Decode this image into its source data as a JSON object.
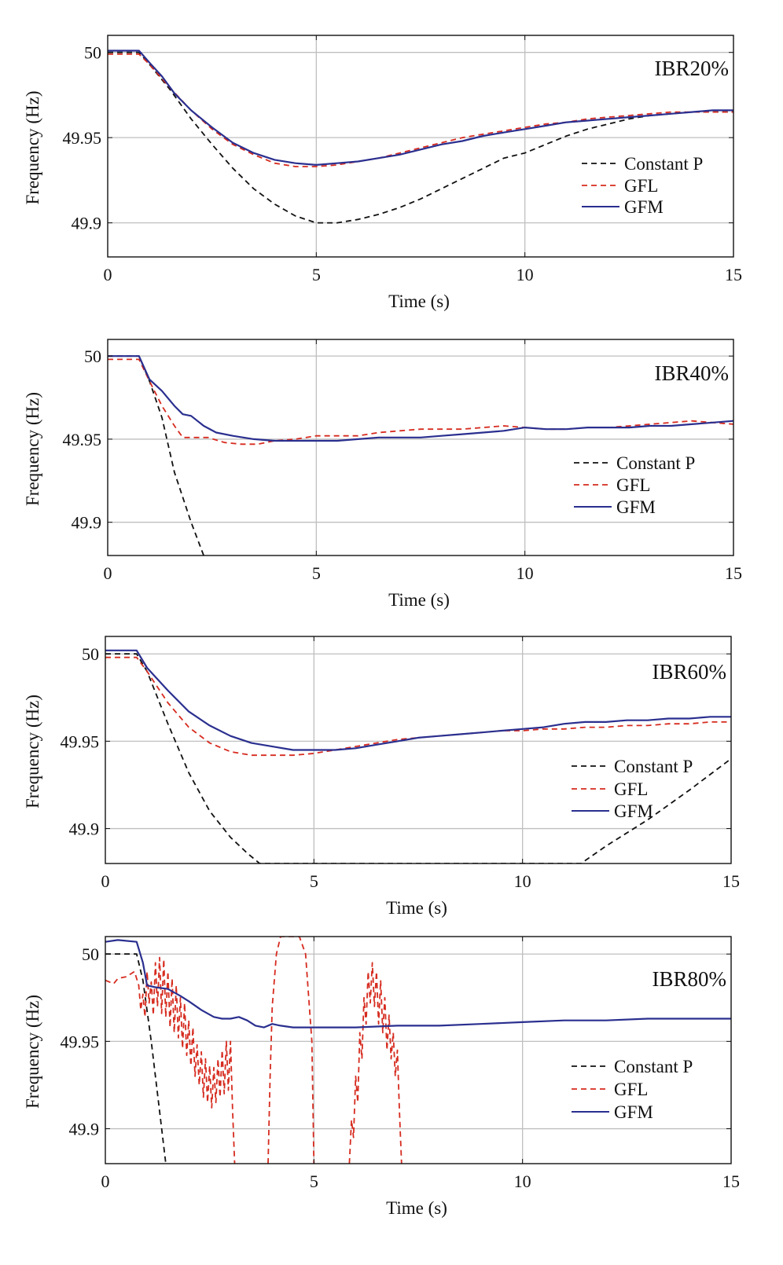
{
  "figure": {
    "xlabel": "Time (s)",
    "ylabel": "Frequency (Hz)",
    "legend": [
      {
        "name": "Constant P",
        "color": "#111111",
        "dash": "dashed"
      },
      {
        "name": "GFL",
        "color": "#d62b1f",
        "dash": "dashed"
      },
      {
        "name": "GFM",
        "color": "#2a2f8f",
        "dash": "solid"
      }
    ]
  },
  "chart_data": [
    {
      "type": "line",
      "title": "IBR20%",
      "xlabel": "Time (s)",
      "ylabel": "Frequency (Hz)",
      "xlim": [
        0,
        15
      ],
      "ylim": [
        49.88,
        50.01
      ],
      "xticks": [
        0,
        5,
        10,
        15
      ],
      "yticks": [
        49.9,
        49.95,
        50
      ],
      "ytick_labels": [
        "49.9",
        "49.95",
        "50"
      ],
      "grid": true,
      "legend_position": "right",
      "series": [
        {
          "name": "Constant P",
          "color": "#111111",
          "dash": "dashed",
          "x": [
            0,
            0.75,
            1.0,
            1.5,
            2.0,
            2.5,
            3.0,
            3.5,
            4.0,
            4.5,
            5.0,
            5.5,
            6.0,
            6.5,
            7.0,
            7.5,
            8.0,
            8.5,
            9.0,
            9.5,
            10.0,
            10.5,
            11.0,
            11.5,
            12.0,
            12.5,
            13.0,
            13.5,
            14.0,
            14.5,
            15.0
          ],
          "y": [
            50.0,
            50.0,
            49.993,
            49.978,
            49.961,
            49.946,
            49.932,
            49.92,
            49.911,
            49.904,
            49.9,
            49.9,
            49.902,
            49.905,
            49.909,
            49.914,
            49.92,
            49.926,
            49.932,
            49.938,
            49.941,
            49.946,
            49.951,
            49.955,
            49.958,
            49.961,
            49.963,
            49.964,
            49.965,
            49.965,
            49.965
          ]
        },
        {
          "name": "GFL",
          "color": "#d62b1f",
          "dash": "dashed",
          "x": [
            0,
            0.75,
            1.0,
            1.5,
            2.0,
            2.5,
            3.0,
            3.5,
            4.0,
            4.5,
            5.0,
            5.5,
            6.0,
            6.5,
            7.0,
            7.5,
            8.0,
            8.5,
            9.0,
            9.5,
            10.0,
            10.5,
            11.0,
            11.5,
            12.0,
            12.5,
            13.0,
            13.5,
            14.0,
            14.5,
            15.0
          ],
          "y": [
            49.999,
            49.999,
            49.993,
            49.979,
            49.966,
            49.955,
            49.946,
            49.94,
            49.935,
            49.933,
            49.933,
            49.934,
            49.936,
            49.938,
            49.941,
            49.944,
            49.947,
            49.95,
            49.952,
            49.954,
            49.956,
            49.958,
            49.959,
            49.961,
            49.962,
            49.963,
            49.964,
            49.965,
            49.965,
            49.965,
            49.965
          ]
        },
        {
          "name": "GFM",
          "color": "#2a2f8f",
          "dash": "solid",
          "x": [
            0,
            0.75,
            1.0,
            1.3,
            1.6,
            2.0,
            2.5,
            3.0,
            3.5,
            4.0,
            4.5,
            5.0,
            5.5,
            6.0,
            6.5,
            7.0,
            7.5,
            8.0,
            8.5,
            9.0,
            9.5,
            10.0,
            10.5,
            11.0,
            11.5,
            12.0,
            12.5,
            13.0,
            13.5,
            14.0,
            14.5,
            15.0
          ],
          "y": [
            50.001,
            50.001,
            49.994,
            49.986,
            49.976,
            49.966,
            49.956,
            49.947,
            49.941,
            49.937,
            49.935,
            49.934,
            49.935,
            49.936,
            49.938,
            49.94,
            49.943,
            49.946,
            49.948,
            49.951,
            49.953,
            49.955,
            49.957,
            49.959,
            49.96,
            49.961,
            49.962,
            49.963,
            49.964,
            49.965,
            49.966,
            49.966
          ]
        }
      ]
    },
    {
      "type": "line",
      "title": "IBR40%",
      "xlabel": "Time (s)",
      "ylabel": "Frequency (Hz)",
      "xlim": [
        0,
        15
      ],
      "ylim": [
        49.88,
        50.01
      ],
      "xticks": [
        0,
        5,
        10,
        15
      ],
      "yticks": [
        49.9,
        49.95,
        50
      ],
      "ytick_labels": [
        "49.9",
        "49.95",
        "50"
      ],
      "grid": true,
      "legend_position": "right",
      "series": [
        {
          "name": "Constant P",
          "color": "#111111",
          "dash": "dashed",
          "x": [
            0,
            0.75,
            1.0,
            1.3,
            1.6,
            2.0,
            2.3
          ],
          "y": [
            50.0,
            50.0,
            49.985,
            49.963,
            49.93,
            49.9,
            49.88
          ]
        },
        {
          "name": "GFL",
          "color": "#d62b1f",
          "dash": "dashed",
          "x": [
            0,
            0.75,
            1.0,
            1.3,
            1.6,
            1.8,
            2.0,
            2.4,
            2.8,
            3.2,
            3.6,
            4.0,
            4.5,
            5.0,
            5.5,
            6.0,
            6.5,
            7.0,
            7.5,
            8.0,
            8.5,
            9.0,
            9.5,
            10.0,
            10.5,
            11.0,
            11.5,
            12.0,
            12.5,
            13.0,
            13.5,
            14.0,
            14.5,
            15.0
          ],
          "y": [
            49.998,
            49.998,
            49.985,
            49.97,
            49.958,
            49.951,
            49.951,
            49.951,
            49.948,
            49.947,
            49.947,
            49.949,
            49.95,
            49.952,
            49.952,
            49.952,
            49.954,
            49.955,
            49.956,
            49.956,
            49.956,
            49.957,
            49.958,
            49.957,
            49.956,
            49.956,
            49.957,
            49.957,
            49.958,
            49.959,
            49.96,
            49.961,
            49.96,
            49.959
          ]
        },
        {
          "name": "GFM",
          "color": "#2a2f8f",
          "dash": "solid",
          "x": [
            0,
            0.75,
            1.0,
            1.3,
            1.6,
            1.8,
            2.0,
            2.3,
            2.6,
            3.0,
            3.5,
            4.0,
            4.5,
            5.0,
            5.5,
            6.0,
            6.5,
            7.0,
            7.5,
            8.0,
            8.5,
            9.0,
            9.5,
            10.0,
            10.5,
            11.0,
            11.5,
            12.0,
            12.5,
            13.0,
            13.5,
            14.0,
            14.5,
            15.0
          ],
          "y": [
            50.0,
            50.0,
            49.986,
            49.979,
            49.97,
            49.965,
            49.964,
            49.958,
            49.954,
            49.952,
            49.95,
            49.949,
            49.949,
            49.949,
            49.949,
            49.95,
            49.951,
            49.951,
            49.951,
            49.952,
            49.953,
            49.954,
            49.955,
            49.957,
            49.956,
            49.956,
            49.957,
            49.957,
            49.957,
            49.958,
            49.958,
            49.959,
            49.96,
            49.961
          ]
        }
      ]
    },
    {
      "type": "line",
      "title": "IBR60%",
      "xlabel": "Time (s)",
      "ylabel": "Frequency (Hz)",
      "xlim": [
        0,
        15
      ],
      "ylim": [
        49.88,
        50.01
      ],
      "xticks": [
        0,
        5,
        10,
        15
      ],
      "yticks": [
        49.9,
        49.95,
        50
      ],
      "ytick_labels": [
        "49.9",
        "49.95",
        "50"
      ],
      "grid": true,
      "legend_position": "right",
      "series": [
        {
          "name": "Constant P",
          "color": "#111111",
          "dash": "dashed",
          "x": [
            0,
            0.75,
            1.0,
            1.5,
            2.0,
            2.5,
            3.0,
            3.4,
            3.7,
            11.4,
            12.0,
            13.0,
            14.0,
            15.0
          ],
          "y": [
            50.0,
            50.0,
            49.99,
            49.96,
            49.932,
            49.91,
            49.895,
            49.886,
            49.88,
            49.88,
            49.89,
            49.905,
            49.922,
            49.94
          ]
        },
        {
          "name": "GFL",
          "color": "#d62b1f",
          "dash": "dashed",
          "x": [
            0,
            0.75,
            1.0,
            1.5,
            2.0,
            2.5,
            3.0,
            3.5,
            4.0,
            4.5,
            5.0,
            5.5,
            6.0,
            6.5,
            7.0,
            7.5,
            8.0,
            8.5,
            9.0,
            9.5,
            10.0,
            10.5,
            11.0,
            11.5,
            12.0,
            12.5,
            13.0,
            13.5,
            14.0,
            14.5,
            15.0
          ],
          "y": [
            49.998,
            49.998,
            49.99,
            49.972,
            49.958,
            49.949,
            49.944,
            49.942,
            49.942,
            49.942,
            49.943,
            49.945,
            49.947,
            49.949,
            49.951,
            49.952,
            49.953,
            49.954,
            49.955,
            49.956,
            49.956,
            49.957,
            49.957,
            49.958,
            49.958,
            49.959,
            49.959,
            49.96,
            49.96,
            49.961,
            49.961
          ]
        },
        {
          "name": "GFM",
          "color": "#2a2f8f",
          "dash": "solid",
          "x": [
            0,
            0.75,
            1.0,
            1.5,
            2.0,
            2.5,
            3.0,
            3.5,
            4.0,
            4.5,
            5.0,
            5.5,
            6.0,
            6.5,
            7.0,
            7.5,
            8.0,
            8.5,
            9.0,
            9.5,
            10.0,
            10.5,
            11.0,
            11.5,
            12.0,
            12.5,
            13.0,
            13.5,
            14.0,
            14.5,
            15.0
          ],
          "y": [
            50.002,
            50.002,
            49.992,
            49.979,
            49.967,
            49.959,
            49.953,
            49.949,
            49.947,
            49.945,
            49.945,
            49.945,
            49.946,
            49.948,
            49.95,
            49.952,
            49.953,
            49.954,
            49.955,
            49.956,
            49.957,
            49.958,
            49.96,
            49.961,
            49.961,
            49.962,
            49.962,
            49.963,
            49.963,
            49.964,
            49.964
          ]
        }
      ]
    },
    {
      "type": "line",
      "title": "IBR80%",
      "xlabel": "Time (s)",
      "ylabel": "Frequency (Hz)",
      "xlim": [
        0,
        15
      ],
      "ylim": [
        49.88,
        50.01
      ],
      "xticks": [
        0,
        5,
        10,
        15
      ],
      "yticks": [
        49.9,
        49.95,
        50
      ],
      "ytick_labels": [
        "49.9",
        "49.95",
        "50"
      ],
      "grid": true,
      "legend_position": "right",
      "series": [
        {
          "name": "Constant P",
          "color": "#111111",
          "dash": "dashed",
          "x": [
            0,
            0.75,
            0.9,
            1.1,
            1.3,
            1.45
          ],
          "y": [
            50.0,
            50.0,
            49.985,
            49.95,
            49.91,
            49.88
          ]
        },
        {
          "name": "GFL",
          "color": "#d62b1f",
          "dash": "dashed",
          "x": [
            0,
            0.2,
            0.3,
            0.5,
            0.7,
            0.8,
            0.85,
            0.9,
            0.95,
            1.0,
            1.05,
            1.1,
            1.15,
            1.2,
            1.25,
            1.3,
            1.35,
            1.4,
            1.45,
            1.5,
            1.55,
            1.6,
            1.65,
            1.7,
            1.75,
            1.8,
            1.85,
            1.9,
            1.95,
            2.0,
            2.05,
            2.1,
            2.15,
            2.2,
            2.25,
            2.3,
            2.35,
            2.4,
            2.45,
            2.5,
            2.55,
            2.6,
            2.65,
            2.7,
            2.75,
            2.8,
            2.85,
            2.9,
            2.95,
            3.0,
            3.05,
            3.1,
            null,
            3.9,
            3.95,
            4.0,
            4.1,
            4.2,
            4.3,
            4.5,
            4.65,
            4.8,
            4.95,
            5.0,
            null,
            5.85,
            5.9,
            5.95,
            6.0,
            6.05,
            6.1,
            6.15,
            6.2,
            6.25,
            6.3,
            6.35,
            6.4,
            6.45,
            6.5,
            6.55,
            6.6,
            6.65,
            6.7,
            6.75,
            6.8,
            6.85,
            6.9,
            6.95,
            7.0,
            7.05,
            7.1
          ],
          "y": [
            49.985,
            49.983,
            49.986,
            49.987,
            49.99,
            49.982,
            49.968,
            49.977,
            49.964,
            49.99,
            49.972,
            49.984,
            49.965,
            49.995,
            49.97,
            49.998,
            49.966,
            49.997,
            49.964,
            49.99,
            49.958,
            49.986,
            49.955,
            49.982,
            49.952,
            49.975,
            49.946,
            49.972,
            49.942,
            49.962,
            49.936,
            49.958,
            49.93,
            49.948,
            49.925,
            49.944,
            49.918,
            49.94,
            49.915,
            49.936,
            49.912,
            49.935,
            49.915,
            49.94,
            49.918,
            49.945,
            49.92,
            49.95,
            49.922,
            49.95,
            49.91,
            49.88,
            null,
            49.88,
            49.93,
            49.97,
            50.0,
            50.01,
            50.01,
            50.01,
            50.01,
            50.0,
            49.95,
            49.88,
            null,
            49.88,
            49.905,
            49.895,
            49.93,
            49.915,
            49.955,
            49.94,
            49.975,
            49.96,
            49.99,
            49.972,
            49.995,
            49.97,
            49.99,
            49.96,
            49.985,
            49.955,
            49.975,
            49.945,
            49.965,
            49.94,
            49.955,
            49.93,
            49.945,
            49.91,
            49.88
          ]
        },
        {
          "name": "GFM",
          "color": "#2a2f8f",
          "dash": "solid",
          "x": [
            0,
            0.3,
            0.75,
            0.9,
            1.0,
            1.2,
            1.5,
            1.8,
            2.0,
            2.3,
            2.6,
            2.8,
            3.0,
            3.2,
            3.4,
            3.6,
            3.8,
            4.0,
            4.2,
            4.5,
            5.0,
            6.0,
            7.0,
            8.0,
            9.0,
            10.0,
            11.0,
            12.0,
            13.0,
            14.0,
            15.0
          ],
          "y": [
            50.007,
            50.008,
            50.007,
            49.995,
            49.982,
            49.981,
            49.98,
            49.976,
            49.973,
            49.968,
            49.964,
            49.963,
            49.963,
            49.964,
            49.962,
            49.959,
            49.958,
            49.96,
            49.959,
            49.958,
            49.958,
            49.958,
            49.959,
            49.959,
            49.96,
            49.961,
            49.962,
            49.962,
            49.963,
            49.963,
            49.963
          ]
        }
      ]
    }
  ]
}
